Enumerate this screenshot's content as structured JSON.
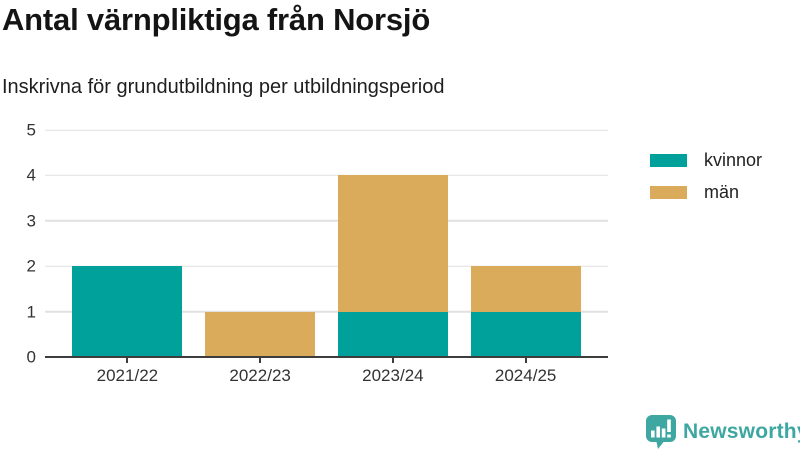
{
  "header": {
    "title": "Antal värnpliktiga från Norsjö",
    "subtitle": "Inskrivna för grundutbildning per utbildningsperiod"
  },
  "chart_data": {
    "type": "bar",
    "stacked": true,
    "title": "Antal värnpliktiga från Norsjö",
    "subtitle": "Inskrivna för grundutbildning per utbildningsperiod",
    "categories": [
      "2021/22",
      "2022/23",
      "2023/24",
      "2024/25"
    ],
    "series": [
      {
        "name": "kvinnor",
        "color": "#00a19b",
        "values": [
          2,
          0,
          1,
          1
        ]
      },
      {
        "name": "män",
        "color": "#d9ab5a",
        "values": [
          0,
          1,
          3,
          1
        ]
      }
    ],
    "totals": [
      2,
      1,
      4,
      2
    ],
    "ylim": [
      0,
      5
    ],
    "yticks": [
      "0",
      "1",
      "2",
      "3",
      "4",
      "5"
    ],
    "xlabel": "",
    "ylabel": "",
    "grid": "horizontal",
    "legend_position": "right",
    "colors": {
      "grid": "#e1e1e1",
      "axis": "#3d3d3d",
      "tick_label": "#333333"
    }
  },
  "footer": {
    "brand": "Newsworthy",
    "brand_color": "#3fa7a2"
  }
}
